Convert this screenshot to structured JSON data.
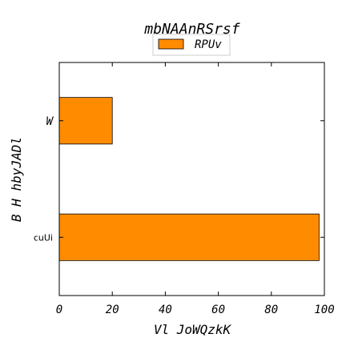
{
  "chart_data": {
    "type": "bar",
    "orientation": "horizontal",
    "title": "mbNAAnRSrsf",
    "xlabel": "Vl JoWQzkK",
    "ylabel": "B H hbyJADl",
    "categories": [
      "cuUi",
      "W"
    ],
    "series": [
      {
        "name": "RPUv",
        "values": [
          98,
          20
        ],
        "color": "#ff8c00"
      }
    ],
    "xlim": [
      0,
      100
    ],
    "xticks": [
      "0",
      "20",
      "40",
      "60",
      "80",
      "100"
    ],
    "grid": false,
    "legend": "top-center"
  }
}
